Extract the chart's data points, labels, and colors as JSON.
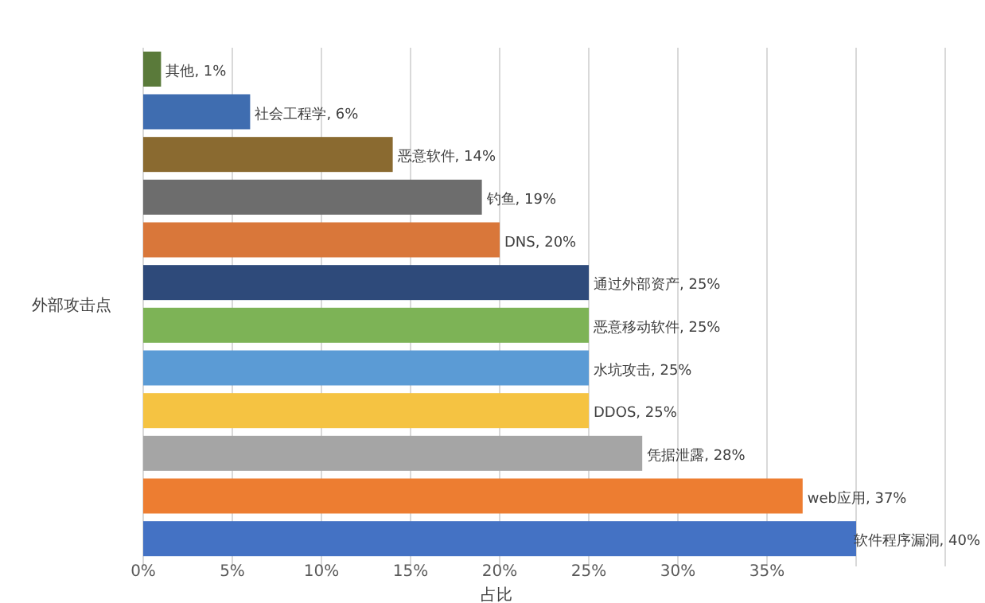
{
  "chart_data": {
    "type": "bar",
    "orientation": "horizontal",
    "ylabel": "外部攻击点",
    "xlabel": "占比",
    "categories": [
      null,
      null,
      null,
      null,
      null,
      null,
      null,
      null,
      null,
      null,
      null,
      null
    ],
    "values": [
      1,
      6,
      14,
      19,
      20,
      25,
      25,
      25,
      25,
      28,
      37,
      40
    ],
    "value_labels": [
      "其他, 1%",
      "社会工程学, 6%",
      "恶意软件, 14%",
      "钓鱼, 19%",
      "DNS, 20%",
      "通过外部资产, 25%",
      "恶意移动软件, 25%",
      "水坑攻击, 25%",
      "DDOS, 25%",
      "凭据泄露, 28%",
      "web应用, 37%",
      "软件程序漏洞, 40%"
    ],
    "colors": [
      "#5a7a3a",
      "#3f6db0",
      "#8a6a30",
      "#6d6d6d",
      "#d9773a",
      "#2e4a7a",
      "#7db356",
      "#5b9bd5",
      "#f5c342",
      "#a5a5a5",
      "#ed7d31",
      "#4472c4"
    ],
    "xlim": [
      0,
      45
    ],
    "xticks": [
      {
        "value": 0,
        "label": "0%"
      },
      {
        "value": 5,
        "label": "5%"
      },
      {
        "value": 10,
        "label": "10%"
      },
      {
        "value": 15,
        "label": "15%"
      },
      {
        "value": 20,
        "label": "20%"
      },
      {
        "value": 25,
        "label": "25%"
      },
      {
        "value": 30,
        "label": "30%"
      },
      {
        "value": 35,
        "label": "35%"
      },
      {
        "value": 40,
        "label": null
      },
      {
        "value": 45,
        "label": null
      }
    ],
    "grid": "x"
  }
}
